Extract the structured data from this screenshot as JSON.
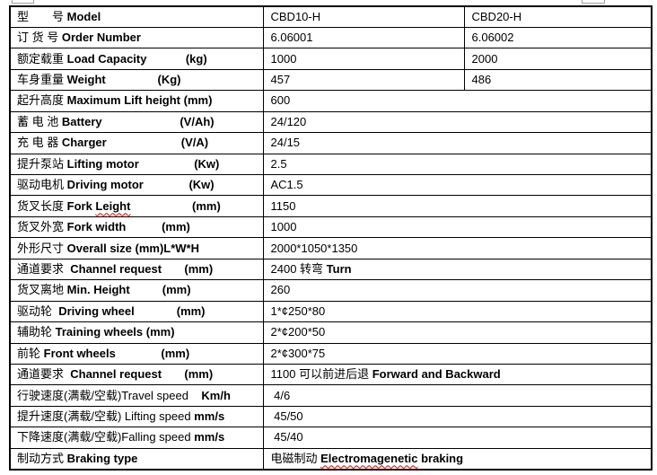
{
  "page": {
    "background_color": "#ffffff",
    "border_color": "#000000",
    "spellcheck_squiggle_color": "#e00000",
    "handle_box_color": "#a0a0a0"
  },
  "table": {
    "rows": [
      {
        "label": [
          [
            "型　　号 ",
            ""
          ],
          [
            "Model",
            "b"
          ]
        ],
        "values": [
          [
            [
              "CBD10-H",
              ""
            ]
          ],
          [
            [
              "CBD20-H",
              ""
            ]
          ]
        ]
      },
      {
        "label": [
          [
            "订 货 号 ",
            ""
          ],
          [
            "Order Number",
            "b"
          ]
        ],
        "values": [
          [
            [
              "6.06001",
              ""
            ]
          ],
          [
            [
              "6.06002",
              ""
            ]
          ]
        ]
      },
      {
        "label": [
          [
            "额定载重 ",
            ""
          ],
          [
            "Load Capacity",
            "b"
          ],
          [
            "            ",
            ""
          ],
          [
            "(kg)",
            "b"
          ]
        ],
        "values": [
          [
            [
              "1000",
              ""
            ]
          ],
          [
            [
              "2000",
              ""
            ]
          ]
        ]
      },
      {
        "label": [
          [
            "车身重量 ",
            ""
          ],
          [
            "Weight",
            "b"
          ],
          [
            "                ",
            ""
          ],
          [
            "(Kg)",
            "b"
          ]
        ],
        "values": [
          [
            [
              "457",
              ""
            ]
          ],
          [
            [
              "486",
              ""
            ]
          ]
        ]
      },
      {
        "label": [
          [
            "起升高度 ",
            ""
          ],
          [
            "Maximum Lift height (mm)",
            "b"
          ]
        ],
        "values": [
          [
            [
              "600",
              ""
            ]
          ]
        ]
      },
      {
        "label": [
          [
            "蓄 电 池 ",
            ""
          ],
          [
            "Battery",
            "b"
          ],
          [
            "                        ",
            ""
          ],
          [
            "(V/Ah)",
            "b"
          ]
        ],
        "values": [
          [
            [
              "24/120",
              ""
            ]
          ]
        ]
      },
      {
        "label": [
          [
            "充 电 器 ",
            ""
          ],
          [
            "Charger",
            "b"
          ],
          [
            "                       ",
            ""
          ],
          [
            "(V/A)",
            "b"
          ]
        ],
        "values": [
          [
            [
              "24/15",
              ""
            ]
          ]
        ]
      },
      {
        "label": [
          [
            "提升泵站 ",
            ""
          ],
          [
            "Lifting motor",
            "b"
          ],
          [
            "                 ",
            ""
          ],
          [
            "(Kw)",
            "b"
          ]
        ],
        "values": [
          [
            [
              "2.5",
              ""
            ]
          ]
        ]
      },
      {
        "label": [
          [
            "驱动电机 ",
            ""
          ],
          [
            "Driving motor",
            "b"
          ],
          [
            "              ",
            ""
          ],
          [
            "(Kw)",
            "b"
          ]
        ],
        "values": [
          [
            [
              "AC1.5",
              ""
            ]
          ]
        ]
      },
      {
        "label": [
          [
            "货叉长度 ",
            ""
          ],
          [
            "Fork ",
            "b"
          ],
          [
            "Leight",
            "bq"
          ],
          [
            "                   ",
            ""
          ],
          [
            "(mm)",
            "b"
          ]
        ],
        "values": [
          [
            [
              "1150",
              ""
            ]
          ]
        ]
      },
      {
        "label": [
          [
            "货叉外宽 ",
            ""
          ],
          [
            "Fork width",
            "b"
          ],
          [
            "           ",
            ""
          ],
          [
            "(mm)",
            "b"
          ]
        ],
        "values": [
          [
            [
              "1000",
              ""
            ]
          ]
        ]
      },
      {
        "label": [
          [
            "外形尺寸 ",
            ""
          ],
          [
            "Overall size (mm)L*W*H",
            "b"
          ]
        ],
        "values": [
          [
            [
              "2000*1050*1350",
              ""
            ]
          ]
        ]
      },
      {
        "label": [
          [
            "通道要求  ",
            ""
          ],
          [
            "Channel request",
            "b"
          ],
          [
            "       ",
            ""
          ],
          [
            "(mm)",
            "b"
          ]
        ],
        "values": [
          [
            [
              "2400 转弯 ",
              ""
            ],
            [
              "Turn",
              "b"
            ]
          ]
        ]
      },
      {
        "label": [
          [
            "货叉离地 ",
            ""
          ],
          [
            "Min. Height",
            "b"
          ],
          [
            "          ",
            ""
          ],
          [
            "(mm)",
            "b"
          ]
        ],
        "values": [
          [
            [
              "260",
              ""
            ]
          ]
        ]
      },
      {
        "label": [
          [
            "驱动轮  ",
            ""
          ],
          [
            "Driving wheel",
            "b"
          ],
          [
            "             ",
            ""
          ],
          [
            "(mm)",
            "b"
          ]
        ],
        "values": [
          [
            [
              "1*¢250*80",
              ""
            ]
          ]
        ]
      },
      {
        "label": [
          [
            "辅助轮 ",
            ""
          ],
          [
            "Training wheels (mm)",
            "b"
          ]
        ],
        "values": [
          [
            [
              "2*¢200*50",
              ""
            ]
          ]
        ]
      },
      {
        "label": [
          [
            "前轮 ",
            ""
          ],
          [
            "Front wheels",
            "b"
          ],
          [
            "              ",
            ""
          ],
          [
            "(mm)",
            "b"
          ]
        ],
        "values": [
          [
            [
              "2*¢300*75",
              ""
            ]
          ]
        ]
      },
      {
        "label": [
          [
            "通道要求  ",
            ""
          ],
          [
            "Channel request",
            "b"
          ],
          [
            "       ",
            ""
          ],
          [
            "(mm)",
            "b"
          ]
        ],
        "values": [
          [
            [
              "1100 可以前进后退 ",
              ""
            ],
            [
              "Forward and Backward",
              "b"
            ]
          ]
        ]
      },
      {
        "label": [
          [
            "行驶速度(满载/空载)Travel speed",
            ""
          ],
          [
            "    ",
            ""
          ],
          [
            "Km/h",
            "b"
          ]
        ],
        "values": [
          [
            [
              " 4/6",
              ""
            ]
          ]
        ]
      },
      {
        "label": [
          [
            "提升速度(满载/空载) Lifting speed ",
            ""
          ],
          [
            "mm/s",
            "b"
          ]
        ],
        "values": [
          [
            [
              " 45/50",
              ""
            ]
          ]
        ]
      },
      {
        "label": [
          [
            "下降速度(满载/空载)Falling speed ",
            ""
          ],
          [
            "mm/s",
            "b"
          ]
        ],
        "values": [
          [
            [
              " 45/40",
              ""
            ]
          ]
        ]
      },
      {
        "label": [
          [
            "制动方式 ",
            ""
          ],
          [
            "Braking type",
            "b"
          ]
        ],
        "values": [
          [
            [
              "电磁制动 ",
              ""
            ],
            [
              "Electromagenetic",
              "bq"
            ],
            [
              " braking",
              "b"
            ]
          ]
        ]
      }
    ]
  }
}
